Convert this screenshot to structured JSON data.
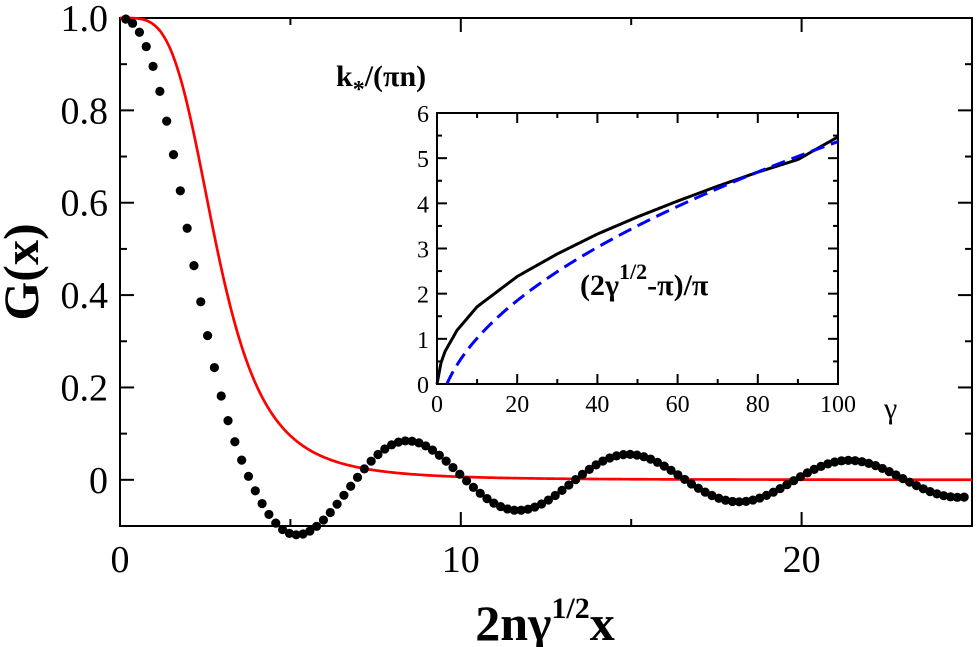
{
  "chart_data": [
    {
      "type": "line",
      "name": "main",
      "xlabel": {
        "base": "2nγ",
        "sup": "1/2",
        "tail": "x"
      },
      "ylabel": "G(x)",
      "xlim": [
        0,
        25
      ],
      "ylim": [
        -0.1,
        1.0
      ],
      "xticks": [
        0,
        10,
        20
      ],
      "xtick_labels": [
        "0",
        "10",
        "20"
      ],
      "yticks": [
        0,
        0.2,
        0.4,
        0.6,
        0.8,
        1.0
      ],
      "ytick_labels": [
        "0",
        "0.2",
        "0.4",
        "0.6",
        "0.8",
        "1.0"
      ],
      "series": [
        {
          "name": "dots",
          "style": "markers",
          "color": "#000000",
          "description": "oscillating correlation function",
          "x_start": 0.17,
          "x_step": 0.2,
          "count": 124,
          "damping_amplitude": 0.0015,
          "notable_points": [
            [
              0,
              1.0
            ],
            [
              5.3,
              -0.095
            ],
            [
              8.6,
              0.04
            ],
            [
              11.8,
              -0.018
            ],
            [
              15.0,
              0.012
            ],
            [
              18.1,
              -0.008
            ],
            [
              21.4,
              0.006
            ]
          ]
        },
        {
          "name": "gaussian",
          "style": "line",
          "color": "#ff0000",
          "description": "monotonic decay",
          "width": 2.7
        }
      ]
    },
    {
      "type": "line",
      "name": "inset",
      "title": {
        "base": "k",
        "sub": "*",
        "tail": "/(πn)"
      },
      "xlabel": "γ",
      "xlim": [
        0,
        100
      ],
      "ylim": [
        0,
        6
      ],
      "xticks": [
        0,
        20,
        40,
        60,
        80,
        100
      ],
      "xtick_labels": [
        "0",
        "20",
        "40",
        "60",
        "80",
        "100"
      ],
      "yticks": [
        0,
        1,
        2,
        3,
        4,
        5,
        6
      ],
      "ytick_labels": [
        "0",
        "1",
        "2",
        "3",
        "4",
        "5",
        "6"
      ],
      "annotation": {
        "base": "(2γ",
        "sup": "1/2",
        "tail": "-π)/π"
      },
      "series": [
        {
          "name": "exact",
          "style": "solid",
          "color": "#000000",
          "x": [
            0,
            1,
            2,
            5,
            10,
            20,
            30,
            40,
            50,
            60,
            70,
            80,
            90,
            100
          ],
          "y": [
            0,
            0.47,
            0.72,
            1.19,
            1.71,
            2.38,
            2.88,
            3.32,
            3.7,
            4.05,
            4.38,
            4.69,
            4.97,
            5.47
          ]
        },
        {
          "name": "asymptotic",
          "style": "dashed",
          "color": "#0000ff",
          "formula": "(2*sqrt(g)-pi)/pi",
          "x_min": 2.47,
          "x_max": 100
        }
      ]
    }
  ]
}
